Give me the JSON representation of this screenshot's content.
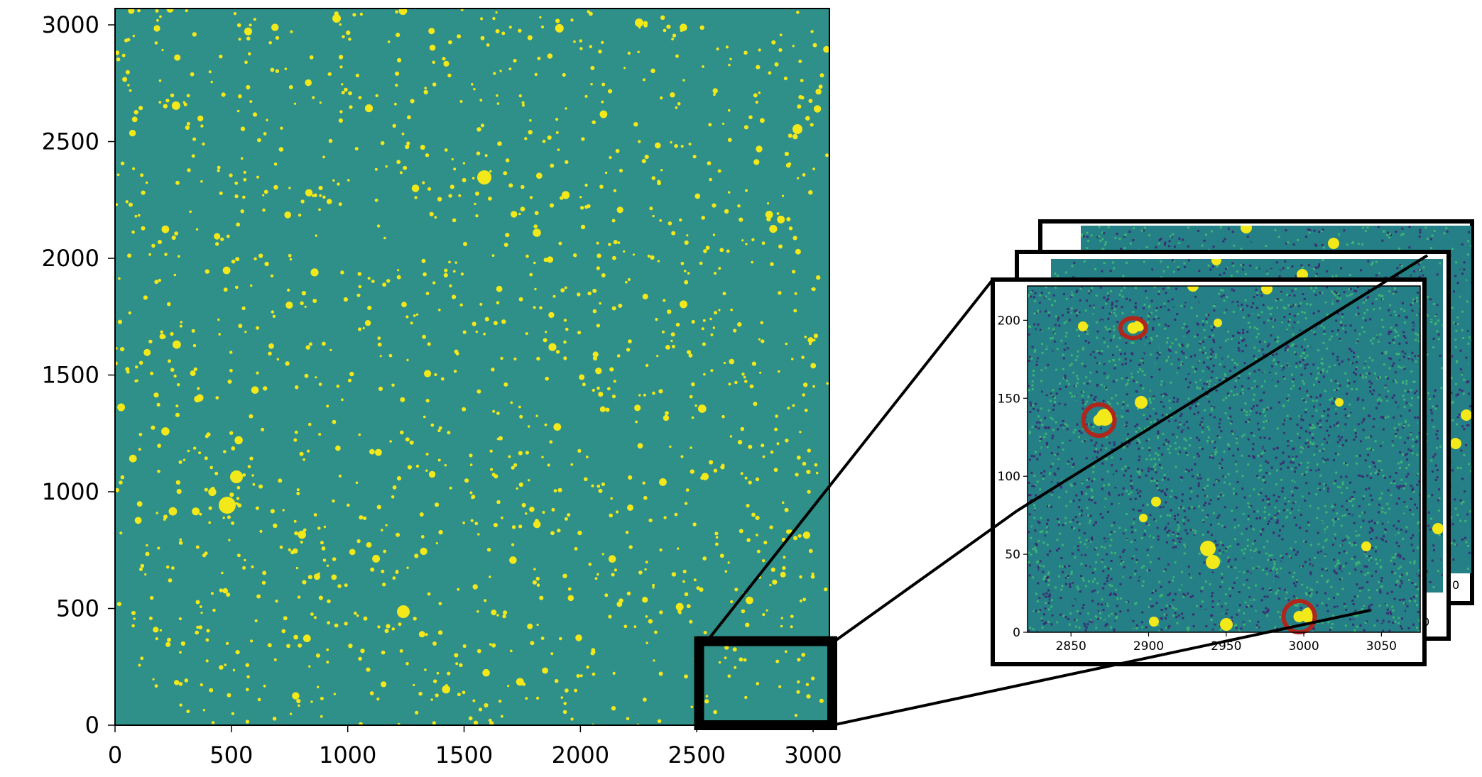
{
  "colors": {
    "background_field": "#2f8f89",
    "star": "#f3e81a",
    "noise_dark": "#3a2f73",
    "noise_mid": "#247f86",
    "noise_light": "#3eb373",
    "circle": "#b0261c",
    "frame": "#000000"
  },
  "main_plot": {
    "x_ticks": [
      "0",
      "500",
      "1000",
      "1500",
      "2000",
      "2500",
      "3000"
    ],
    "y_ticks": [
      "0",
      "500",
      "1000",
      "1500",
      "2000",
      "2500",
      "3000"
    ],
    "x_range": [
      0,
      3070
    ],
    "y_range": [
      0,
      3070
    ],
    "zoom_box": {
      "x": [
        2510,
        3070
      ],
      "y": [
        0,
        360
      ]
    }
  },
  "inset": {
    "x_ticks": [
      "2850",
      "2900",
      "2950",
      "3000",
      "3050"
    ],
    "y_ticks": [
      "0",
      "50",
      "100",
      "150",
      "200"
    ],
    "x_range": [
      2822,
      3075
    ],
    "y_range": [
      0,
      222
    ],
    "circled_sources": [
      {
        "x": 2890,
        "y": 195
      },
      {
        "x": 2868,
        "y": 136
      },
      {
        "x": 2997,
        "y": 10
      }
    ],
    "back_frame_partial_ticks": [
      "0",
      "0"
    ]
  }
}
